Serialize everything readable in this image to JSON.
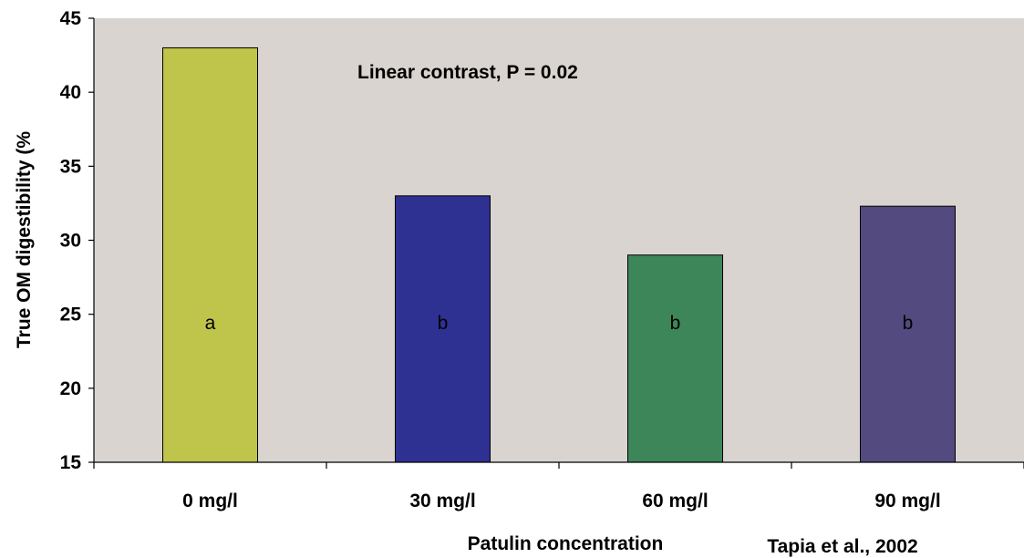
{
  "chart_data": {
    "type": "bar",
    "categories": [
      "0 mg/l",
      "30 mg/l",
      "60 mg/l",
      "90 mg/l"
    ],
    "values": [
      43,
      33,
      29,
      32.3
    ],
    "bar_labels": [
      "a",
      "b",
      "b",
      "b"
    ],
    "bar_colors": [
      "#BFC44A",
      "#2E3192",
      "#3D8659",
      "#534A80"
    ],
    "xlabel": "Patulin concentration",
    "ylabel": "True OM digestibility (%",
    "ylim": [
      15,
      45
    ],
    "yticks": [
      15,
      20,
      25,
      30,
      35,
      40,
      45
    ],
    "grid": false,
    "plot_background": "#D9D4CF",
    "annotations": [
      "Linear contrast, P = 0.02"
    ],
    "source": "Tapia et al., 2002"
  }
}
